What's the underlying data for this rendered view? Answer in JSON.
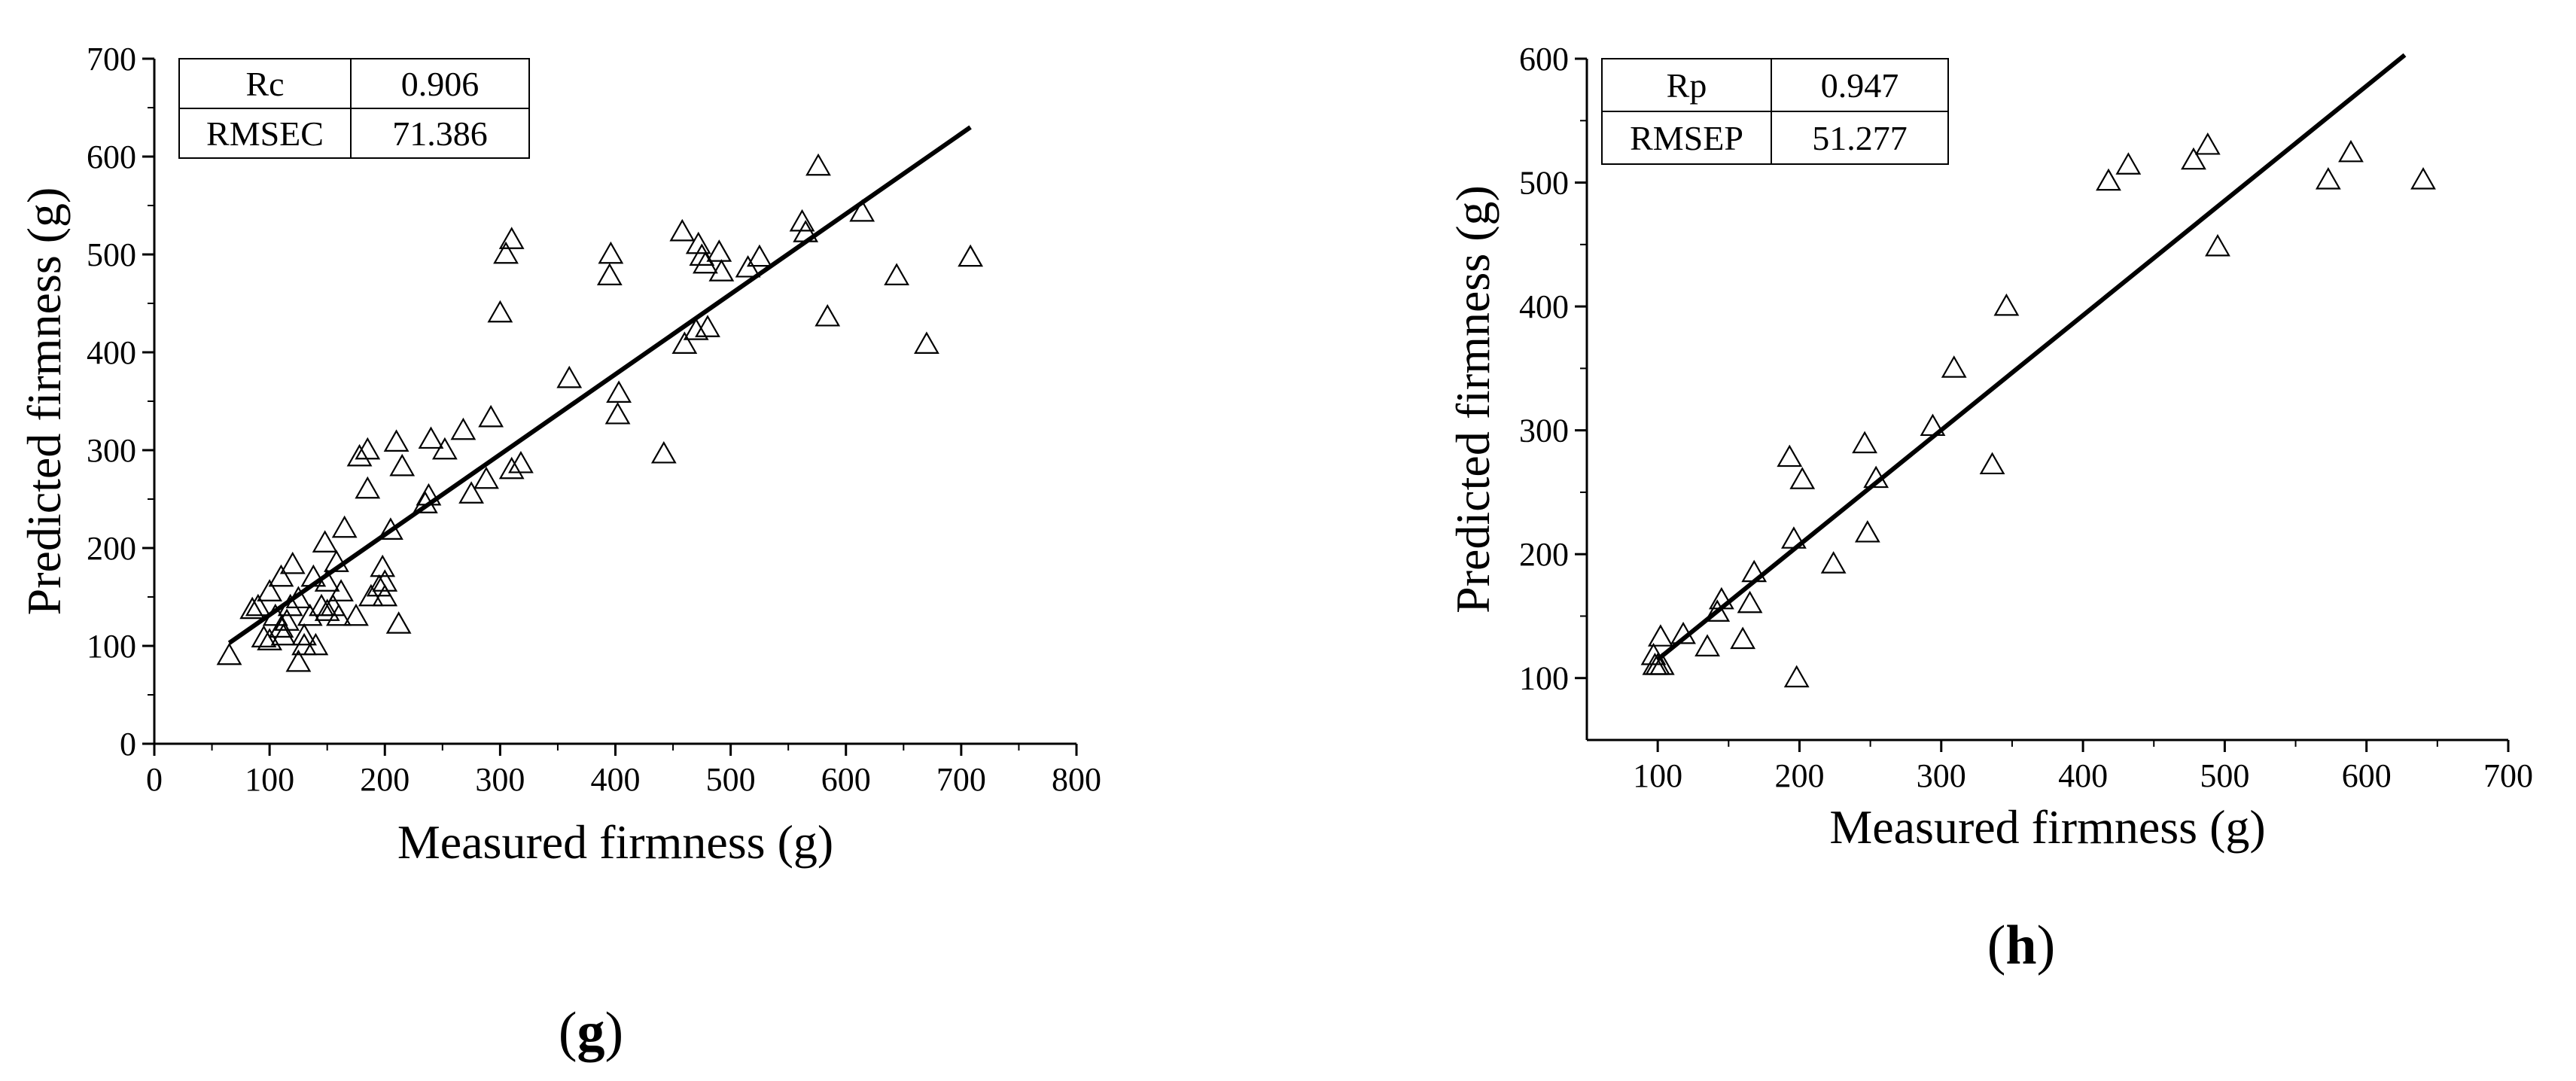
{
  "chart_data": [
    {
      "type": "scatter",
      "panel_label": {
        "open": "(",
        "letter": "g",
        "close": ")"
      },
      "xlabel": "Measured firmness (g)",
      "ylabel": "Predicted firmness (g)",
      "xlim": [
        0,
        800
      ],
      "ylim": [
        0,
        700
      ],
      "xticks": [
        0,
        100,
        200,
        300,
        400,
        500,
        600,
        700,
        800
      ],
      "yticks": [
        0,
        100,
        200,
        300,
        400,
        500,
        600,
        700
      ],
      "stats": [
        {
          "name": "Rc",
          "value": "0.906"
        },
        {
          "name": "RMSEC",
          "value": "71.386"
        }
      ],
      "fit_line": {
        "x": [
          65,
          708
        ],
        "y": [
          103,
          630
        ]
      },
      "marker": "triangle-open",
      "points": [
        [
          65,
          90
        ],
        [
          85,
          137
        ],
        [
          90,
          140
        ],
        [
          95,
          108
        ],
        [
          100,
          105
        ],
        [
          100,
          155
        ],
        [
          105,
          130
        ],
        [
          110,
          170
        ],
        [
          110,
          118
        ],
        [
          112,
          110
        ],
        [
          115,
          125
        ],
        [
          118,
          140
        ],
        [
          120,
          183
        ],
        [
          125,
          148
        ],
        [
          125,
          83
        ],
        [
          130,
          110
        ],
        [
          130,
          100
        ],
        [
          135,
          130
        ],
        [
          138,
          170
        ],
        [
          140,
          100
        ],
        [
          145,
          140
        ],
        [
          148,
          205
        ],
        [
          150,
          165
        ],
        [
          150,
          135
        ],
        [
          155,
          140
        ],
        [
          158,
          185
        ],
        [
          160,
          130
        ],
        [
          162,
          155
        ],
        [
          165,
          220
        ],
        [
          175,
          130
        ],
        [
          178,
          293
        ],
        [
          185,
          300
        ],
        [
          185,
          260
        ],
        [
          188,
          150
        ],
        [
          195,
          160
        ],
        [
          198,
          180
        ],
        [
          200,
          150
        ],
        [
          200,
          165
        ],
        [
          205,
          218
        ],
        [
          210,
          308
        ],
        [
          212,
          122
        ],
        [
          215,
          283
        ],
        [
          235,
          245
        ],
        [
          238,
          253
        ],
        [
          240,
          311
        ],
        [
          252,
          300
        ],
        [
          268,
          320
        ],
        [
          275,
          255
        ],
        [
          288,
          270
        ],
        [
          292,
          333
        ],
        [
          300,
          440
        ],
        [
          305,
          500
        ],
        [
          310,
          515
        ],
        [
          310,
          280
        ],
        [
          318,
          286
        ],
        [
          360,
          373
        ],
        [
          395,
          478
        ],
        [
          396,
          500
        ],
        [
          402,
          336
        ],
        [
          403,
          358
        ],
        [
          442,
          296
        ],
        [
          458,
          523
        ],
        [
          460,
          408
        ],
        [
          470,
          422
        ],
        [
          472,
          510
        ],
        [
          475,
          498
        ],
        [
          478,
          490
        ],
        [
          480,
          425
        ],
        [
          490,
          502
        ],
        [
          492,
          482
        ],
        [
          515,
          486
        ],
        [
          525,
          497
        ],
        [
          562,
          533
        ],
        [
          565,
          522
        ],
        [
          576,
          590
        ],
        [
          584,
          436
        ],
        [
          614,
          543
        ],
        [
          644,
          478
        ],
        [
          670,
          408
        ],
        [
          708,
          497
        ]
      ]
    },
    {
      "type": "scatter",
      "panel_label": {
        "open": "(",
        "letter": "h",
        "close": ")"
      },
      "xlabel": "Measured firmness (g)",
      "ylabel": "Predicted firmness (g)",
      "xlim": [
        50,
        700
      ],
      "ylim": [
        50,
        600
      ],
      "xticks": [
        100,
        200,
        300,
        400,
        500,
        600,
        700
      ],
      "yticks": [
        100,
        200,
        300,
        400,
        500,
        600
      ],
      "stats": [
        {
          "name": "Rp",
          "value": "0.947"
        },
        {
          "name": "RMSEP",
          "value": "51.277"
        }
      ],
      "fit_line": {
        "x": [
          100,
          627
        ],
        "y": [
          115,
          603
        ]
      },
      "marker": "triangle-open",
      "points": [
        [
          97,
          118
        ],
        [
          98,
          110
        ],
        [
          100,
          110
        ],
        [
          102,
          133
        ],
        [
          103,
          110
        ],
        [
          118,
          135
        ],
        [
          135,
          125
        ],
        [
          142,
          153
        ],
        [
          145,
          163
        ],
        [
          160,
          131
        ],
        [
          165,
          160
        ],
        [
          168,
          185
        ],
        [
          193,
          278
        ],
        [
          196,
          212
        ],
        [
          198,
          100
        ],
        [
          202,
          260
        ],
        [
          224,
          192
        ],
        [
          246,
          289
        ],
        [
          248,
          217
        ],
        [
          254,
          261
        ],
        [
          294,
          303
        ],
        [
          309,
          350
        ],
        [
          336,
          272
        ],
        [
          346,
          400
        ],
        [
          418,
          501
        ],
        [
          432,
          514
        ],
        [
          478,
          518
        ],
        [
          488,
          530
        ],
        [
          495,
          448
        ],
        [
          573,
          502
        ],
        [
          589,
          524
        ],
        [
          640,
          502
        ]
      ]
    }
  ]
}
